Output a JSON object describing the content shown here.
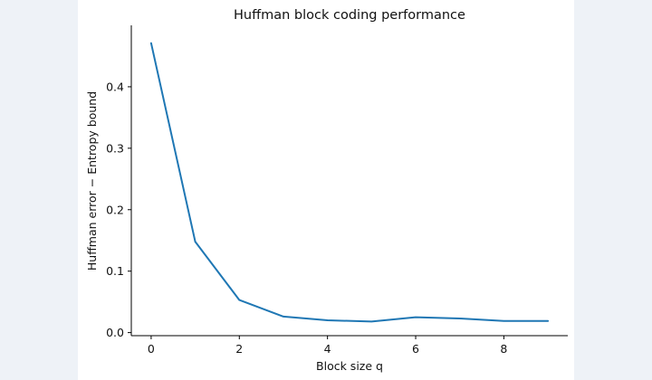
{
  "chart_data": {
    "type": "line",
    "title": "Huffman block coding performance",
    "xlabel": "Block size q",
    "ylabel": "Huffman error − Entropy bound",
    "xlim": [
      -0.45,
      9.45
    ],
    "ylim": [
      -0.005,
      0.5
    ],
    "xticks": [
      0,
      2,
      4,
      6,
      8
    ],
    "xtick_labels": [
      "0",
      "2",
      "4",
      "6",
      "8"
    ],
    "yticks": [
      0.0,
      0.1,
      0.2,
      0.3,
      0.4
    ],
    "ytick_labels": [
      "0.0",
      "0.1",
      "0.2",
      "0.3",
      "0.4"
    ],
    "grid": false,
    "x": [
      0,
      1,
      2,
      3,
      4,
      5,
      6,
      7,
      8,
      9
    ],
    "series": [
      {
        "values": [
          0.471,
          0.148,
          0.053,
          0.026,
          0.02,
          0.018,
          0.025,
          0.023,
          0.019,
          0.019
        ],
        "color": "#1f77b4"
      }
    ]
  }
}
